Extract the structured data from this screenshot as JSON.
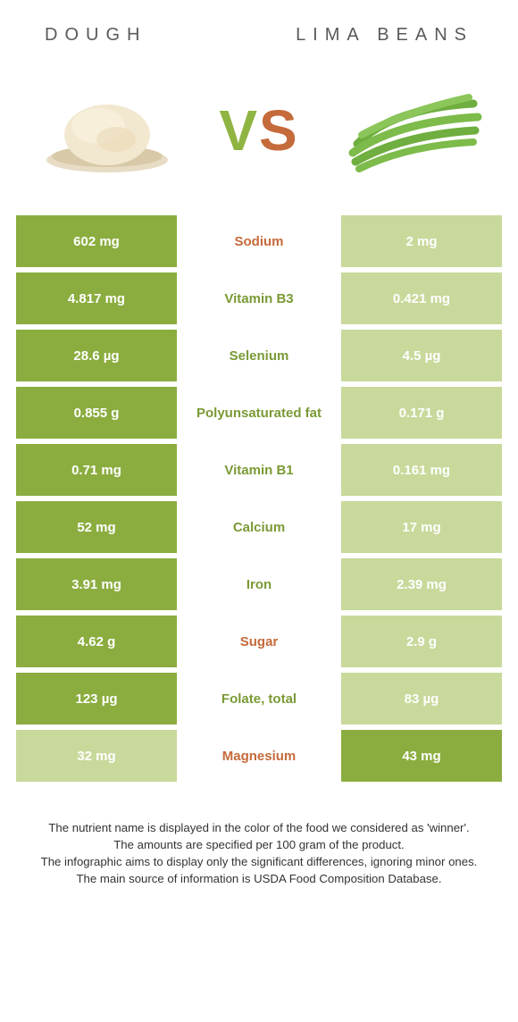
{
  "header": {
    "left": "Dough",
    "right": "Lima beans"
  },
  "vs": {
    "v": "V",
    "s": "S"
  },
  "colors": {
    "winner_bg": "#8bad3f",
    "loser_bg": "#c8d99b",
    "label_green": "#7a9a35",
    "label_orange": "#c56a3a"
  },
  "rows": [
    {
      "left": "602 mg",
      "label": "Sodium",
      "right": "2 mg",
      "winner": "left",
      "labelColor": "orange"
    },
    {
      "left": "4.817 mg",
      "label": "Vitamin B3",
      "right": "0.421 mg",
      "winner": "left",
      "labelColor": "green"
    },
    {
      "left": "28.6 µg",
      "label": "Selenium",
      "right": "4.5 µg",
      "winner": "left",
      "labelColor": "green"
    },
    {
      "left": "0.855 g",
      "label": "Polyunsaturated fat",
      "right": "0.171 g",
      "winner": "left",
      "labelColor": "green"
    },
    {
      "left": "0.71 mg",
      "label": "Vitamin B1",
      "right": "0.161 mg",
      "winner": "left",
      "labelColor": "green"
    },
    {
      "left": "52 mg",
      "label": "Calcium",
      "right": "17 mg",
      "winner": "left",
      "labelColor": "green"
    },
    {
      "left": "3.91 mg",
      "label": "Iron",
      "right": "2.39 mg",
      "winner": "left",
      "labelColor": "green"
    },
    {
      "left": "4.62 g",
      "label": "Sugar",
      "right": "2.9 g",
      "winner": "left",
      "labelColor": "orange"
    },
    {
      "left": "123 µg",
      "label": "Folate, total",
      "right": "83 µg",
      "winner": "left",
      "labelColor": "green"
    },
    {
      "left": "32 mg",
      "label": "Magnesium",
      "right": "43 mg",
      "winner": "right",
      "labelColor": "orange"
    }
  ],
  "footer": {
    "l1": "The nutrient name is displayed in the color of the food we considered as 'winner'.",
    "l2": "The amounts are specified per 100 gram of the product.",
    "l3": "The infographic aims to display only the significant differences, ignoring minor ones.",
    "l4": "The main source of information is USDA Food Composition Database."
  }
}
